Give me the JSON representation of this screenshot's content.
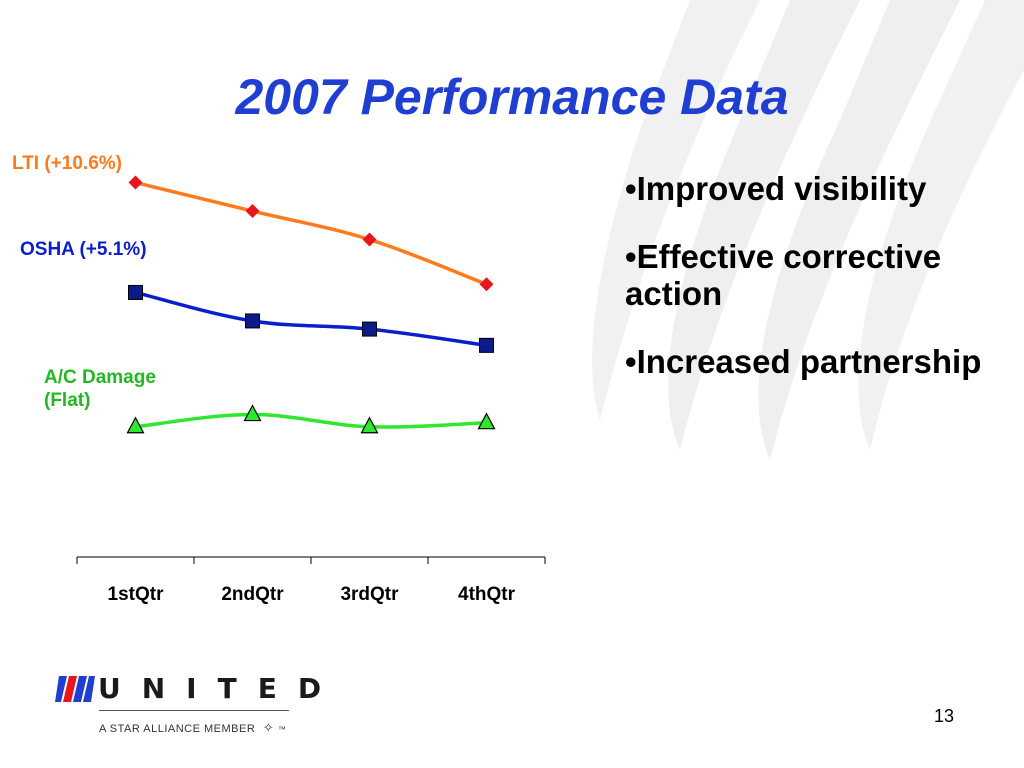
{
  "slide": {
    "title": "2007 Performance Data",
    "page_number": "13"
  },
  "bullets": [
    {
      "dot": "•",
      "text": "Improved visibility"
    },
    {
      "dot": "•",
      "text": "Effective corrective action"
    },
    {
      "dot": "•",
      "text": "Increased partnership"
    }
  ],
  "logo": {
    "wordmark": "UNITED",
    "tagline": "A STAR ALLIANCE MEMBER",
    "tm": "™"
  },
  "colors": {
    "title": "#1f3fd2",
    "lti": "#ff7a1a",
    "lti_marker": "#e8141e",
    "osha": "#0a1fcc",
    "osha_marker": "#0c1a8a",
    "damage": "#2ee82e",
    "damage_label": "#22b822"
  },
  "chart_data": {
    "type": "line",
    "categories": [
      "1stQtr",
      "2ndQtr",
      "3rdQtr",
      "4thQtr"
    ],
    "y_axis_visible": false,
    "grid": false,
    "ylim": [
      0,
      100
    ],
    "series": [
      {
        "name": "LTI (+10.6%)",
        "values": [
          92,
          85,
          78,
          67
        ],
        "marker": "diamond"
      },
      {
        "name": "OSHA (+5.1%)",
        "values": [
          65,
          58,
          56,
          52
        ],
        "marker": "square"
      },
      {
        "name": "A/C Damage (Flat)",
        "values": [
          32,
          35,
          32,
          33
        ],
        "marker": "triangle"
      }
    ]
  }
}
